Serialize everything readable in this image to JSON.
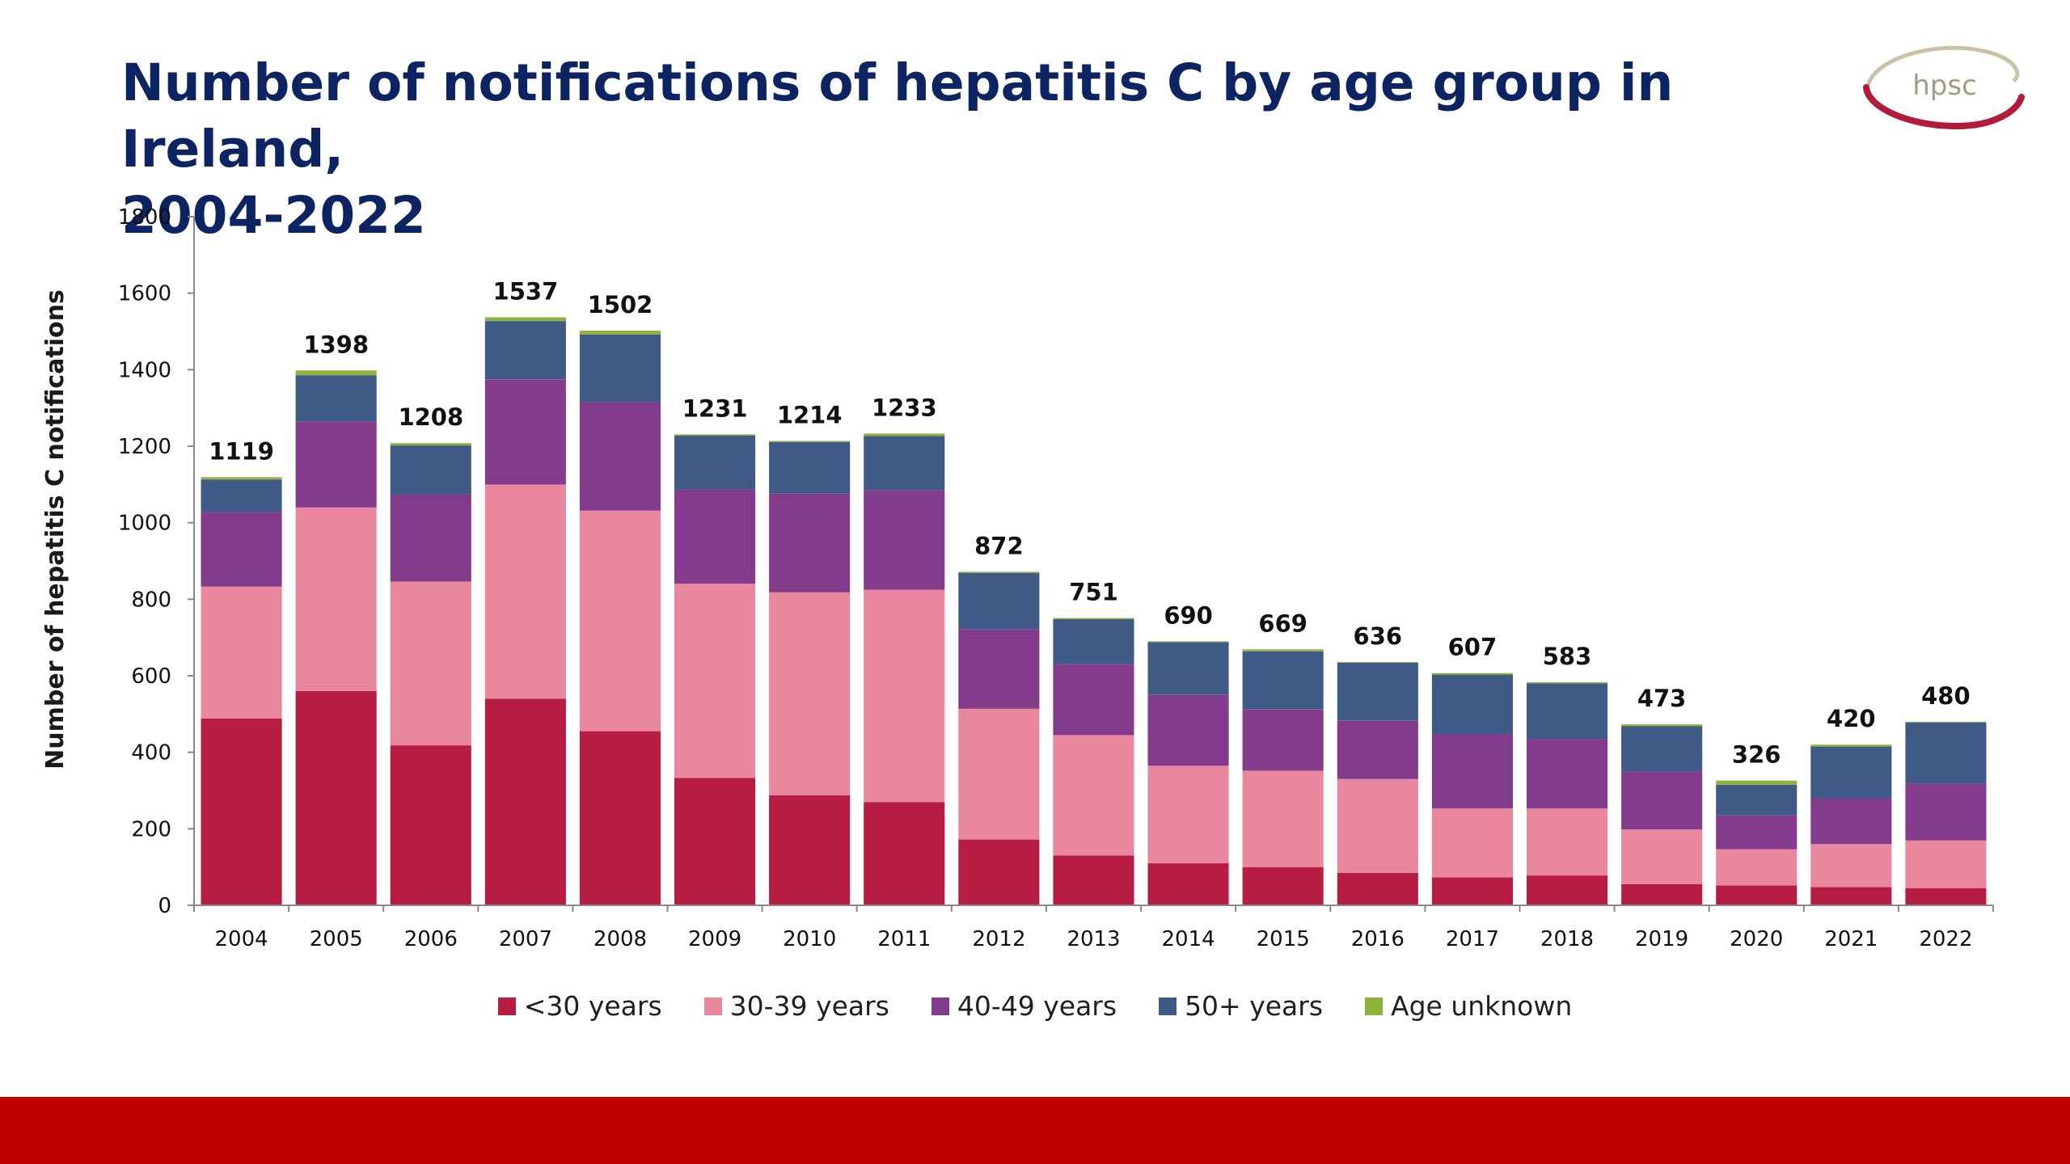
{
  "title": {
    "line1": "Number of notifications of hepatitis C by age group in Ireland,",
    "line2": "2004-2022"
  },
  "logo": {
    "text": "hpsc"
  },
  "colors": {
    "title": "#0d2463",
    "footer": "#c00000",
    "lt30": "#b71c42",
    "30_39": "#e8879e",
    "40_49": "#833c8c",
    "50plus": "#3e5a85",
    "unknown": "#8db33e"
  },
  "chart_data": {
    "type": "bar",
    "stacked": true,
    "ylabel": "Number of hepatitis C notifications",
    "xlabel": "",
    "ylim": [
      0,
      1800
    ],
    "yticks": [
      0,
      200,
      400,
      600,
      800,
      1000,
      1200,
      1400,
      1600,
      1800
    ],
    "legend_position": "bottom",
    "grid": false,
    "categories": [
      "2004",
      "2005",
      "2006",
      "2007",
      "2008",
      "2009",
      "2010",
      "2011",
      "2012",
      "2013",
      "2014",
      "2015",
      "2016",
      "2017",
      "2018",
      "2019",
      "2020",
      "2021",
      "2022"
    ],
    "totals": [
      1119,
      1398,
      1208,
      1537,
      1502,
      1231,
      1214,
      1233,
      872,
      751,
      690,
      669,
      636,
      607,
      583,
      473,
      326,
      420,
      480
    ],
    "series": [
      {
        "name": "<30 years",
        "color": "#b71c42",
        "values": [
          488,
          560,
          418,
          540,
          455,
          333,
          288,
          270,
          172,
          130,
          110,
          100,
          85,
          73,
          78,
          55,
          52,
          48,
          45
        ]
      },
      {
        "name": "30-39 years",
        "color": "#e8879e",
        "values": [
          345,
          480,
          428,
          560,
          577,
          508,
          530,
          555,
          342,
          315,
          255,
          252,
          245,
          180,
          175,
          143,
          95,
          112,
          125
        ]
      },
      {
        "name": "40-49 years",
        "color": "#833c8c",
        "values": [
          195,
          225,
          228,
          275,
          283,
          245,
          258,
          260,
          208,
          185,
          185,
          160,
          152,
          195,
          182,
          152,
          88,
          120,
          148
        ]
      },
      {
        "name": "50+ years",
        "color": "#3e5a85",
        "values": [
          85,
          120,
          128,
          152,
          177,
          142,
          135,
          142,
          147,
          118,
          138,
          152,
          152,
          155,
          145,
          118,
          80,
          135,
          160
        ]
      },
      {
        "name": "Age unknown",
        "color": "#8db33e",
        "values": [
          6,
          13,
          6,
          10,
          10,
          3,
          3,
          6,
          3,
          3,
          2,
          5,
          2,
          4,
          3,
          5,
          11,
          5,
          2
        ]
      }
    ]
  }
}
